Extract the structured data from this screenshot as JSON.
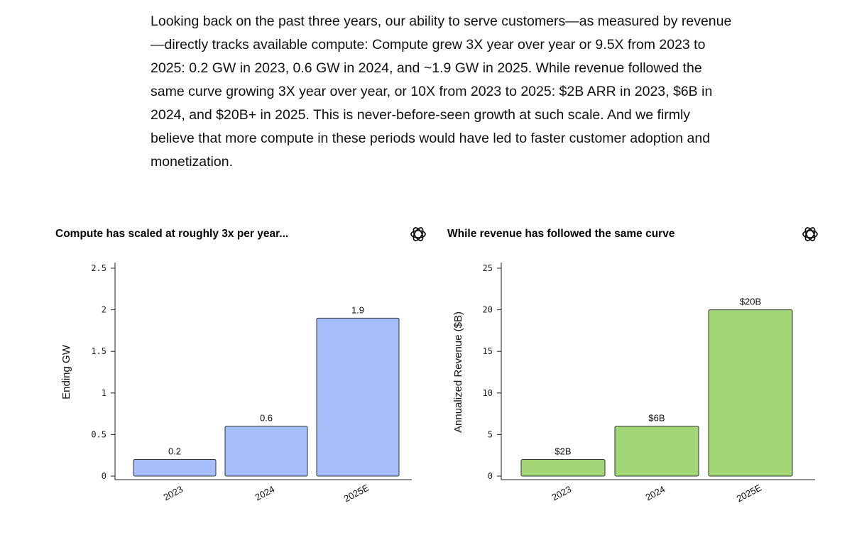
{
  "intro_text": "Looking back on the past three years, our ability to serve customers—as measured by revenue—directly tracks available compute: Compute grew 3X year over year or 9.5X from 2023 to 2025: 0.2 GW in 2023, 0.6 GW in 2024, and ~1.9 GW in 2025. While revenue followed the same curve growing 3X year over year, or 10X from 2023 to 2025: $2B ARR in 2023, $6B in 2024, and $20B+ in 2025. This is never-before-seen growth at such scale. And we firmly believe that more compute in these periods would have led to faster customer adoption and monetization.",
  "logo_icon": "openai-logo-icon",
  "chart_data": [
    {
      "type": "bar",
      "title": "Compute has scaled at roughly 3x per year...",
      "xlabel": "",
      "ylabel": "Ending GW",
      "categories": [
        "2023",
        "2024",
        "2025E"
      ],
      "values": [
        0.2,
        0.6,
        1.9
      ],
      "value_labels": [
        "0.2",
        "0.6",
        "1.9"
      ],
      "ylim": [
        0,
        2.5
      ],
      "yticks": [
        0,
        0.5,
        1,
        1.5,
        2,
        2.5
      ],
      "ytick_labels": [
        "0",
        "0.5",
        "1",
        "1.5",
        "2",
        "2.5"
      ],
      "color": "#a5bdf8",
      "grid": false
    },
    {
      "type": "bar",
      "title": "While revenue has followed the same curve",
      "xlabel": "",
      "ylabel": "Annualized Revenue ($B)",
      "categories": [
        "2023",
        "2024",
        "2025E"
      ],
      "values": [
        2,
        6,
        20
      ],
      "value_labels": [
        "$2B",
        "$6B",
        "$20B"
      ],
      "ylim": [
        0,
        25
      ],
      "yticks": [
        0,
        5,
        10,
        15,
        20,
        25
      ],
      "ytick_labels": [
        "0",
        "5",
        "10",
        "15",
        "20",
        "25"
      ],
      "color": "#a3d677",
      "grid": false
    }
  ]
}
